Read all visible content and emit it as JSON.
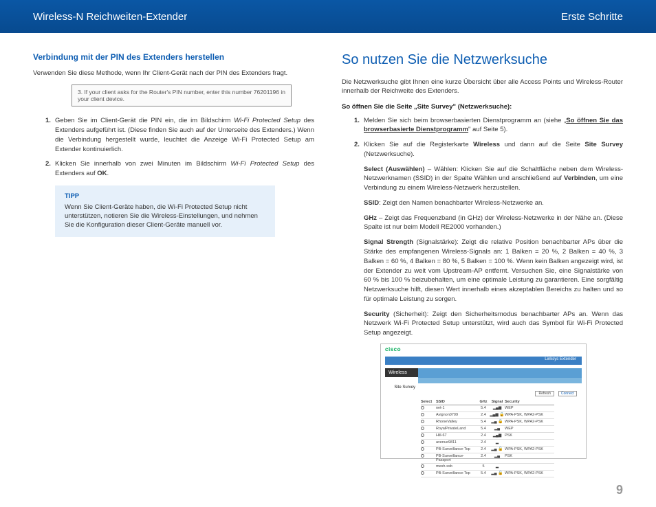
{
  "header": {
    "left": "Wireless-N Reichweiten-Extender",
    "right": "Erste Schritte"
  },
  "left_col": {
    "subhead": "Verbindung mit der PIN des Extenders herstellen",
    "intro": "Verwenden Sie diese Methode, wenn Ihr Client-Gerät nach der PIN des Extenders fragt.",
    "pin_caption": "3. If your client asks for the Router's PIN number, enter this number 76201196 in your client device.",
    "step1_pre": "Geben Sie im Client-Gerät die PIN ein, die im Bildschirm ",
    "step1_em": "Wi-Fi Protected Setup",
    "step1_post": " des Extenders aufgeführt ist. (Diese finden Sie auch auf der Unterseite des Extenders.) Wenn die Verbindung hergestellt wurde, leuchtet die Anzeige Wi-Fi Protected Setup am Extender kontinuierlich.",
    "step2_pre": "Klicken Sie innerhalb von zwei Minuten im Bildschirm ",
    "step2_em": "Wi-Fi Protected Setup",
    "step2_post": " des Extenders auf ",
    "step2_ok": "OK",
    "tip_title": "TIPP",
    "tip_text": "Wenn Sie Client-Geräte haben, die Wi-Fi Protected Setup nicht unterstützen, notieren Sie die Wireless-Einstellungen, und nehmen Sie die Konfiguration dieser Client-Geräte manuell vor."
  },
  "right_col": {
    "bighead": "So nutzen Sie die Netzwerksuche",
    "intro": "Die Netzwerksuche gibt Ihnen eine kurze Übersicht über alle Access Points und Wireless-Router innerhalb der Reichweite des Extenders.",
    "howto_title": "So öffnen Sie die Seite „Site Survey\" (Netzwerksuche):",
    "s1_pre": "Melden Sie sich beim browserbasierten Dienstprogramm an (siehe „",
    "s1_link": "So öffnen Sie das browserbasierte Dienstprogramm",
    "s1_post": "\" auf Seite 5).",
    "s2_a": "Klicken Sie auf die Registerkarte ",
    "s2_b": "Wireless",
    "s2_c": " und dann auf die Seite ",
    "s2_d": "Site Survey",
    "s2_e": " (Netzwerksuche).",
    "d_sel_a": "Select (Auswählen)",
    "d_sel_b": " – Wählen: Klicken Sie auf die Schaltfläche neben dem Wireless-Netzwerknamen (SSID) in der Spalte Wählen und anschließend auf ",
    "d_sel_c": "Verbinden",
    "d_sel_d": ", um eine Verbindung zu einem Wireless-Netzwerk herzustellen.",
    "d_ssid_a": "SSID",
    "d_ssid_b": ": Zeigt den Namen benachbarter Wireless-Netzwerke an.",
    "d_ghz_a": "GHz",
    "d_ghz_b": " – Zeigt das Frequenzband (in GHz) der Wireless-Netzwerke in der Nähe an. (Diese Spalte ist nur beim Modell RE2000 vorhanden.)",
    "d_sig_a": "Signal Strength",
    "d_sig_b": " (Signalstärke): Zeigt die relative Position benachbarter APs über die Stärke des empfangenen Wireless-Signals an: 1 Balken = 20 %, 2 Balken = 40 %, 3 Balken = 60 %, 4 Balken = 80 %, 5 Balken = 100 %. Wenn kein Balken angezeigt wird, ist der Extender zu weit vom Upstream-AP entfernt. Versuchen Sie, eine Signalstärke von 60 % bis 100 % beizubehalten, um eine optimale Leistung zu garantieren. Eine sorgfältig Netzwerksuche hilft, diesen Wert innerhalb eines akzeptablen Bereichs zu halten und so für optimale Leistung zu sorgen.",
    "d_sec_a": "Security",
    "d_sec_b": " (Sicherheit): Zeigt den Sicherheitsmodus benachbarter APs an. Wenn das Netzwerk Wi-Fi Protected Setup unterstützt, wird auch das Symbol für Wi-Fi Protected Setup angezeigt."
  },
  "sitesurvey": {
    "logo": "cisco",
    "extender": "Linksys Extender",
    "wireless": "Wireless",
    "side": "Site Survey",
    "refresh": "Refresh",
    "connect": "Connect",
    "cols": {
      "select": "Select",
      "ssid": "SSID",
      "ghz": "GHz",
      "signal": "Signal",
      "security": "Security"
    },
    "rows": [
      {
        "ssid": "net-1",
        "ghz": "5.4",
        "sig": "▂▄▆",
        "sec": "WEP"
      },
      {
        "ssid": "Avignon0709",
        "ghz": "2.4",
        "sig": "▂▄▆",
        "sec": "WPA-PSK, WPA2-PSK",
        "lock": true
      },
      {
        "ssid": "RhoneValley",
        "ghz": "5.4",
        "sig": "▂▄",
        "sec": "WPA-PSK, WPA2-PSK",
        "lock": true
      },
      {
        "ssid": "RoyalPrivateLand",
        "ghz": "5.4",
        "sig": "▂▄",
        "sec": "WEP"
      },
      {
        "ssid": "Hill-67",
        "ghz": "2.4",
        "sig": "▂▄▆",
        "sec": "PSK"
      },
      {
        "ssid": "avenue9811",
        "ghz": "2.4",
        "sig": "▂",
        "sec": ""
      },
      {
        "ssid": "PB-Surveillance-Top",
        "ghz": "2.4",
        "sig": "▂▄",
        "sec": "WPA-PSK, WPA2-PSK",
        "lock": true
      },
      {
        "ssid": "PB-Surveillance-Passport",
        "ghz": "2.4",
        "sig": "▂▄",
        "sec": "PSK"
      },
      {
        "ssid": "mesh-ssb",
        "ghz": "5",
        "sig": "▂",
        "sec": ""
      },
      {
        "ssid": "PB-Surveillance-Top",
        "ghz": "5.4",
        "sig": "▂▄",
        "sec": "WPA-PSK, WPA2-PSK",
        "lock": true
      }
    ]
  },
  "page": "9",
  "colors": {
    "brand_blue": "#0d5db2",
    "header_gradient_top": "#0a57a5",
    "header_gradient_bottom": "#084a8f",
    "tip_bg": "#e6f0fa"
  }
}
